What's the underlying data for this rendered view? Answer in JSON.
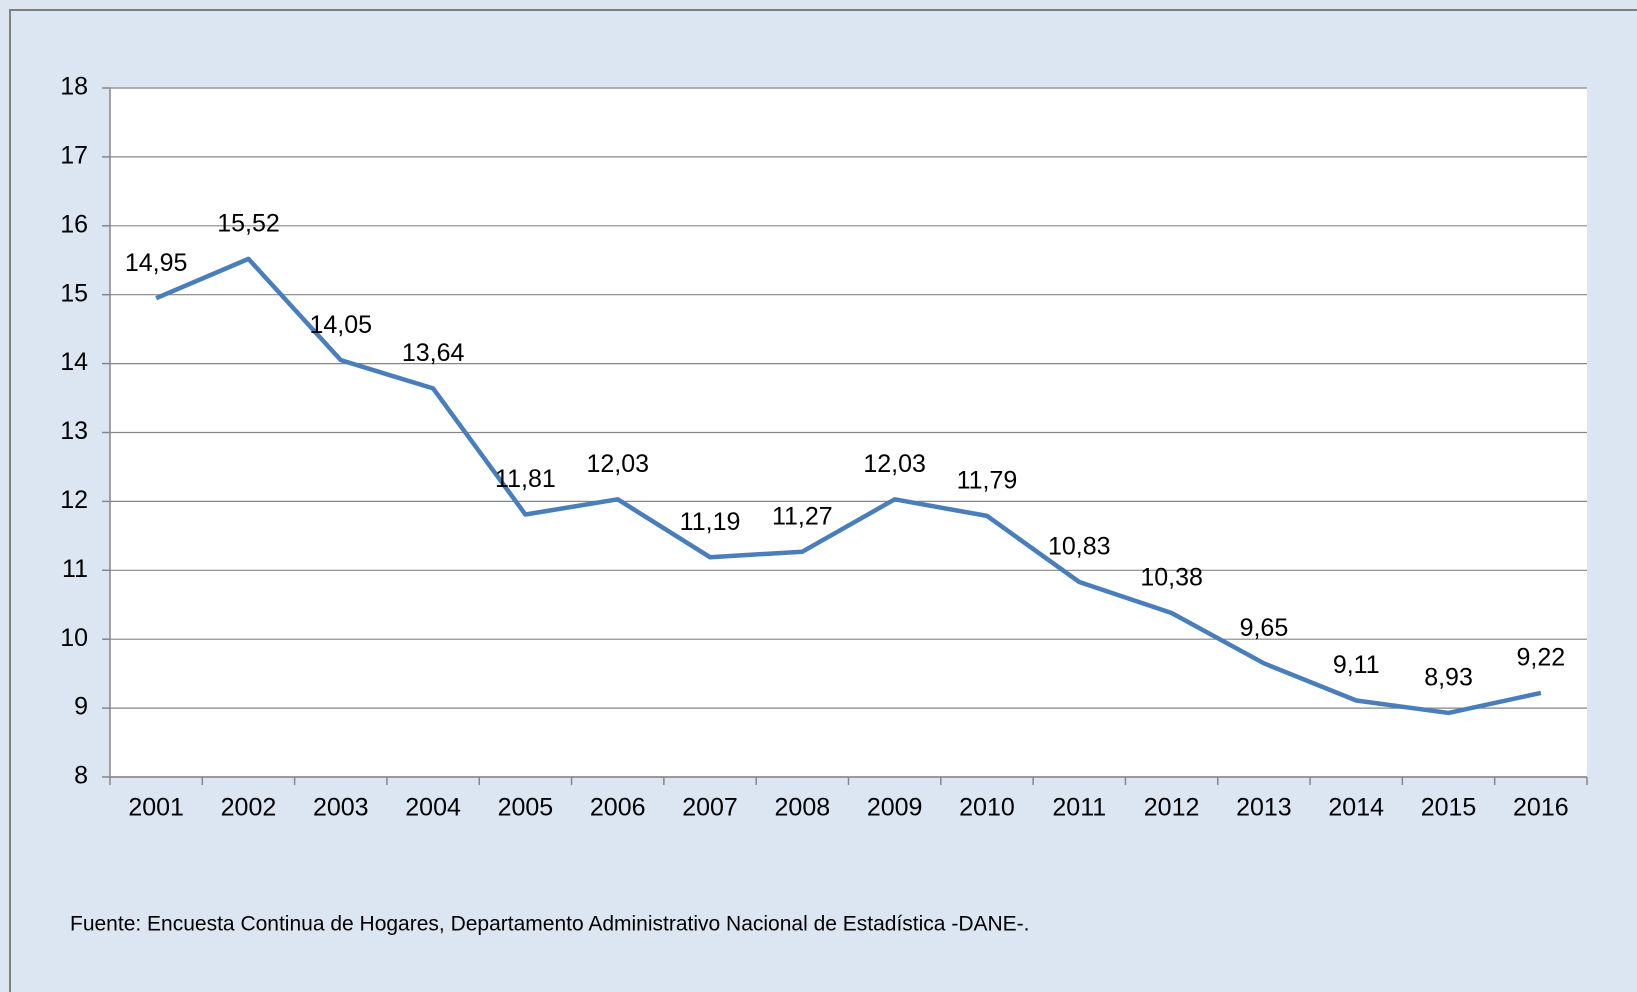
{
  "chart_data": {
    "type": "line",
    "categories": [
      "2001",
      "2002",
      "2003",
      "2004",
      "2005",
      "2006",
      "2007",
      "2008",
      "2009",
      "2010",
      "2011",
      "2012",
      "2013",
      "2014",
      "2015",
      "2016"
    ],
    "values": [
      14.95,
      15.52,
      14.05,
      13.64,
      11.81,
      12.03,
      11.19,
      11.27,
      12.03,
      11.79,
      10.83,
      10.38,
      9.65,
      9.11,
      8.93,
      9.22
    ],
    "value_labels": [
      "14,95",
      "15,52",
      "14,05",
      "13,64",
      "11,81",
      "12,03",
      "11,19",
      "11,27",
      "12,03",
      "11,79",
      "10,83",
      "10,38",
      "9,65",
      "9,11",
      "8,93",
      "9,22"
    ],
    "color": "#4a7ebb",
    "ylim": [
      8,
      18
    ],
    "yticks": [
      8,
      9,
      10,
      11,
      12,
      13,
      14,
      15,
      16,
      17,
      18
    ],
    "grid": true,
    "source": "Fuente: Encuesta Continua de Hogares, Departamento Administrativo Nacional de Estadística -DANE-."
  }
}
